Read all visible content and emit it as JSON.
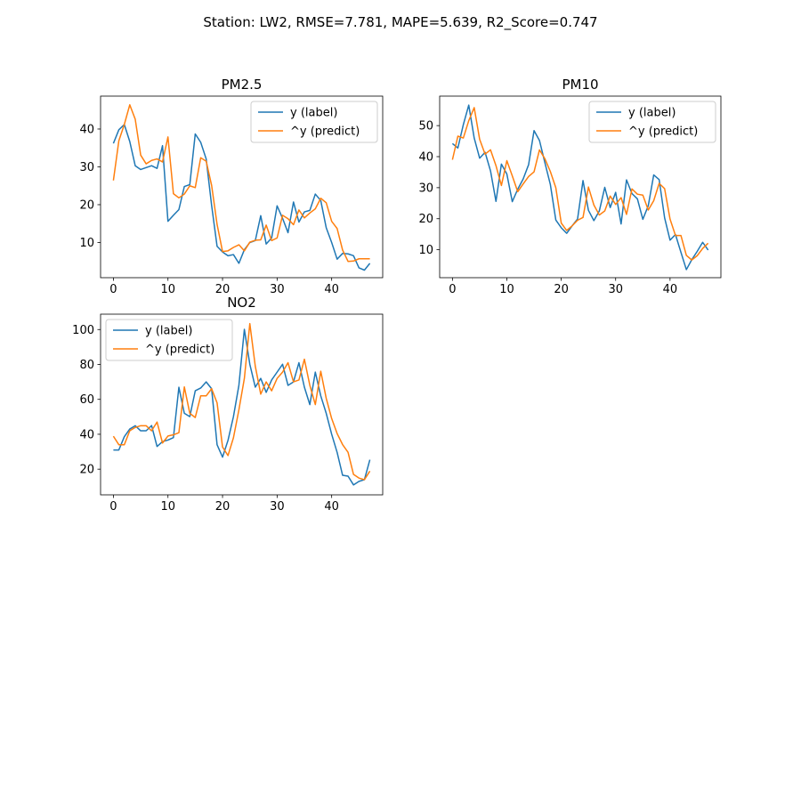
{
  "suptitle": "Station: LW2, RMSE=7.781, MAPE=5.639, R2_Score=0.747",
  "colors": {
    "label": "#1f77b4",
    "predict": "#ff7f0e"
  },
  "chart_data": [
    {
      "type": "line",
      "title": "PM2.5",
      "xlim": [
        -2.35,
        49.35
      ],
      "ylim": [
        0.7,
        48.7
      ],
      "xticks": [
        0,
        10,
        20,
        30,
        40
      ],
      "yticks": [
        10,
        20,
        30,
        40
      ],
      "grid": false,
      "legend_loc": "upper right",
      "series": [
        {
          "name": "y (label)",
          "color": "#1f77b4",
          "values": [
            36.2,
            39.8,
            41.2,
            36.7,
            30.3,
            29.3,
            29.8,
            30.3,
            29.6,
            35.6,
            15.6,
            17.2,
            18.7,
            24.8,
            25.3,
            38.7,
            36.5,
            32.1,
            19.8,
            9.0,
            7.5,
            6.5,
            6.8,
            4.5,
            8.1,
            10.0,
            10.5,
            17.1,
            9.6,
            11.2,
            19.7,
            16.4,
            12.6,
            20.7,
            15.4,
            18.1,
            18.5,
            22.8,
            21.1,
            13.9,
            10.0,
            5.6,
            7.1,
            7.0,
            6.5,
            3.3,
            2.7,
            4.5
          ]
        },
        {
          "name": "^y (predict)",
          "color": "#ff7f0e",
          "values": [
            26.4,
            36.9,
            41.2,
            46.4,
            42.6,
            33.1,
            30.8,
            31.7,
            32.1,
            31.3,
            37.9,
            22.9,
            21.8,
            22.8,
            25.0,
            24.5,
            32.4,
            31.5,
            25.1,
            14.8,
            7.6,
            7.8,
            8.7,
            9.4,
            7.8,
            10.1,
            10.6,
            10.7,
            14.6,
            10.5,
            11.2,
            17.2,
            16.3,
            14.7,
            18.6,
            16.5,
            17.8,
            18.9,
            21.7,
            20.5,
            15.6,
            13.7,
            8.0,
            5.0,
            5.1,
            5.7,
            5.7,
            5.7
          ]
        }
      ]
    },
    {
      "type": "line",
      "title": "PM10",
      "xlim": [
        -2.35,
        49.35
      ],
      "ylim": [
        1.0,
        59.5
      ],
      "xticks": [
        0,
        10,
        20,
        30,
        40
      ],
      "yticks": [
        10,
        20,
        30,
        40,
        50
      ],
      "grid": false,
      "legend_loc": "upper right",
      "series": [
        {
          "name": "y (label)",
          "color": "#1f77b4",
          "values": [
            44.2,
            42.8,
            50.3,
            56.6,
            46.0,
            39.5,
            41.4,
            35.4,
            25.6,
            37.6,
            34.4,
            25.5,
            29.5,
            32.8,
            37.4,
            48.4,
            45.2,
            38.0,
            31.0,
            19.6,
            17.1,
            15.3,
            17.7,
            19.9,
            32.3,
            22.7,
            19.4,
            22.5,
            30.1,
            23.6,
            28.5,
            18.3,
            32.5,
            28.1,
            26.4,
            19.8,
            24.2,
            34.1,
            32.6,
            20.3,
            13.1,
            14.9,
            9.2,
            3.6,
            6.8,
            9.5,
            12.4,
            9.9
          ]
        },
        {
          "name": "^y (predict)",
          "color": "#ff7f0e",
          "values": [
            39.0,
            46.6,
            46.0,
            51.6,
            55.8,
            45.6,
            40.8,
            42.2,
            37.1,
            30.7,
            38.7,
            33.8,
            28.7,
            31.2,
            33.6,
            35.1,
            42.2,
            39.3,
            35.2,
            30.0,
            18.6,
            16.2,
            17.7,
            19.5,
            20.4,
            30.2,
            24.4,
            21.2,
            22.5,
            27.3,
            24.6,
            26.8,
            21.4,
            29.6,
            27.9,
            27.6,
            22.8,
            25.8,
            31.4,
            29.7,
            19.9,
            14.6,
            14.6,
            8.2,
            6.7,
            8.1,
            10.4,
            12.1
          ]
        }
      ]
    },
    {
      "type": "line",
      "title": "NO2",
      "xlim": [
        -2.35,
        49.35
      ],
      "ylim": [
        5.3,
        108.8
      ],
      "xticks": [
        0,
        10,
        20,
        30,
        40
      ],
      "yticks": [
        20,
        40,
        60,
        80,
        100
      ],
      "grid": false,
      "legend_loc": "upper left",
      "series": [
        {
          "name": "y (label)",
          "color": "#1f77b4",
          "values": [
            31.0,
            31.0,
            38.6,
            43.0,
            44.9,
            42.0,
            42.0,
            45.0,
            33.0,
            35.8,
            36.7,
            38.1,
            66.9,
            52.0,
            50.1,
            64.9,
            66.5,
            70.0,
            66.1,
            34.0,
            26.9,
            36.5,
            50.1,
            68.1,
            100.1,
            80.1,
            67.0,
            72.0,
            64.0,
            71.1,
            75.6,
            80.1,
            68.0,
            70.0,
            81.0,
            67.0,
            57.0,
            75.6,
            62.0,
            52.0,
            40.0,
            29.6,
            16.5,
            16.0,
            11.0,
            13.0,
            14.0,
            25.4
          ]
        },
        {
          "name": "^y (predict)",
          "color": "#ff7f0e",
          "values": [
            38.9,
            34.0,
            34.0,
            42.0,
            43.9,
            44.9,
            44.9,
            42.0,
            47.0,
            35.0,
            39.0,
            39.7,
            40.9,
            67.1,
            52.0,
            49.6,
            62.0,
            62.0,
            66.1,
            58.0,
            32.7,
            27.8,
            38.0,
            54.0,
            72.0,
            103.4,
            79.0,
            63.0,
            70.0,
            64.9,
            72.0,
            75.6,
            81.0,
            70.0,
            71.1,
            83.0,
            68.0,
            57.0,
            76.1,
            60.6,
            49.0,
            40.4,
            34.1,
            29.7,
            17.0,
            14.9,
            14.0,
            18.9
          ]
        }
      ]
    }
  ]
}
